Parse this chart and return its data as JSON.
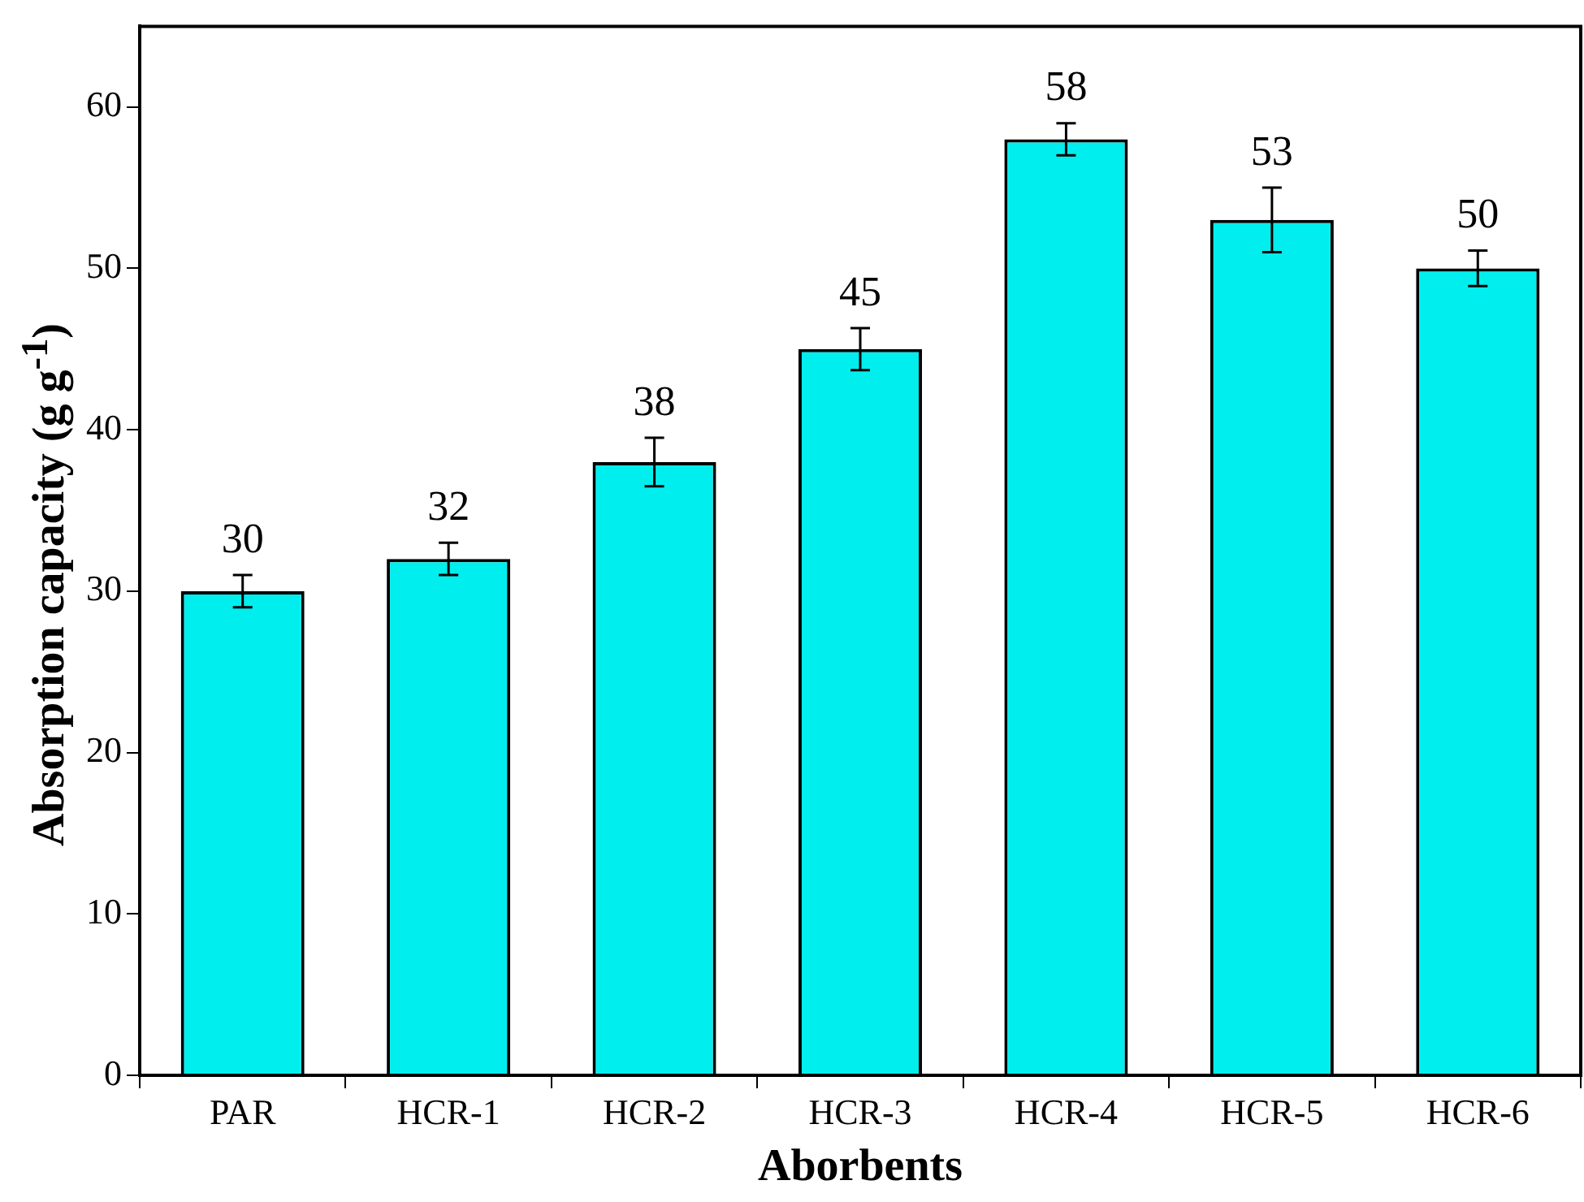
{
  "chart_data": {
    "type": "bar",
    "xlabel": "Aborbents",
    "ylabel": "Absorption capacity (g g$^{-1}$)",
    "categories": [
      "PAR",
      "HCR-1",
      "HCR-2",
      "HCR-3",
      "HCR-4",
      "HCR-5",
      "HCR-6"
    ],
    "values": [
      30,
      32,
      38,
      45,
      58,
      53,
      50
    ],
    "errors": [
      1,
      1,
      1.5,
      1.3,
      1,
      2,
      1.1
    ],
    "color": "#00eeee",
    "ylim": [
      0,
      65
    ],
    "yticks": [
      0,
      10,
      20,
      30,
      40,
      50,
      60
    ],
    "grid": false,
    "legend": false,
    "data_labels": true
  }
}
